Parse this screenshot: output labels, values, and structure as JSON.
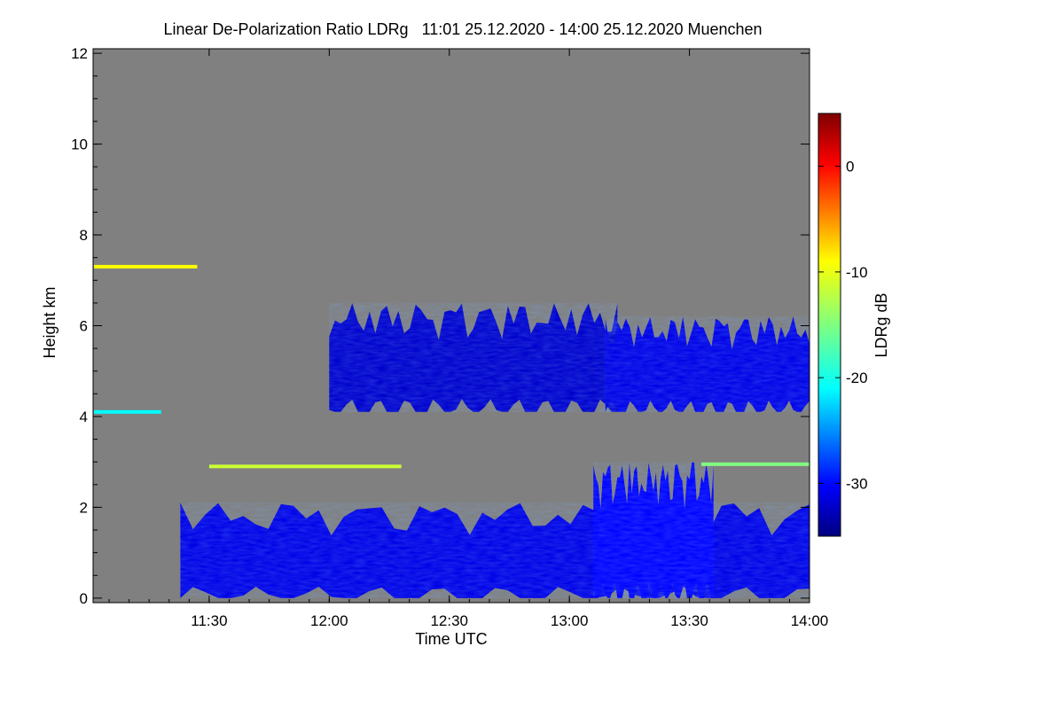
{
  "chart_data": {
    "type": "heatmap",
    "title": "Linear De-Polarization Ratio LDRg   11:01 25.12.2020 - 14:00 25.12.2020 Muenchen",
    "xlabel": "Time UTC",
    "ylabel": "Height km",
    "x_tick_labels": [
      "11:30",
      "12:00",
      "12:30",
      "13:00",
      "13:30",
      "14:00"
    ],
    "x_tick_values_hours": [
      11.5,
      12.0,
      12.5,
      13.0,
      13.5,
      14.0
    ],
    "xlim_hours": [
      11.0167,
      14.0
    ],
    "y_tick_labels": [
      "0",
      "2",
      "4",
      "6",
      "8",
      "10",
      "12"
    ],
    "y_tick_values": [
      0,
      2,
      4,
      6,
      8,
      10,
      12
    ],
    "ylim": [
      -0.1,
      12.1
    ],
    "colorbar": {
      "label": "LDRg dB",
      "tick_labels": [
        "0",
        "-10",
        "-20",
        "-30"
      ],
      "tick_values": [
        0,
        -10,
        -20,
        -30
      ],
      "range": [
        -35,
        5
      ],
      "colormap": "jet"
    },
    "background_color": "#808080",
    "cloud_layers": [
      {
        "name": "",
        "start_h": 11.38,
        "end_h": 14.0,
        "bottom_km": 0.0,
        "top_km": 2.1,
        "ldr_db": -31
      },
      {
        "name": "",
        "start_h": 12.0,
        "end_h": 13.2,
        "bottom_km": 4.1,
        "top_km": 6.5,
        "ldr_db": -32
      },
      {
        "name": "",
        "start_h": 13.15,
        "end_h": 14.0,
        "bottom_km": 4.1,
        "top_km": 6.2,
        "ldr_db": -31
      },
      {
        "name": "",
        "start_h": 13.1,
        "end_h": 13.6,
        "bottom_km": 0.0,
        "top_km": 3.0,
        "ldr_db": -30
      }
    ],
    "thin_layers": [
      {
        "height_km": 7.3,
        "start_h": 11.02,
        "end_h": 11.45,
        "ldr_db": -10
      },
      {
        "height_km": 4.1,
        "start_h": 11.02,
        "end_h": 11.3,
        "ldr_db": -20
      },
      {
        "height_km": 2.9,
        "start_h": 11.5,
        "end_h": 12.3,
        "ldr_db": -12
      },
      {
        "height_km": 2.95,
        "start_h": 13.55,
        "end_h": 14.0,
        "ldr_db": -15
      }
    ]
  }
}
